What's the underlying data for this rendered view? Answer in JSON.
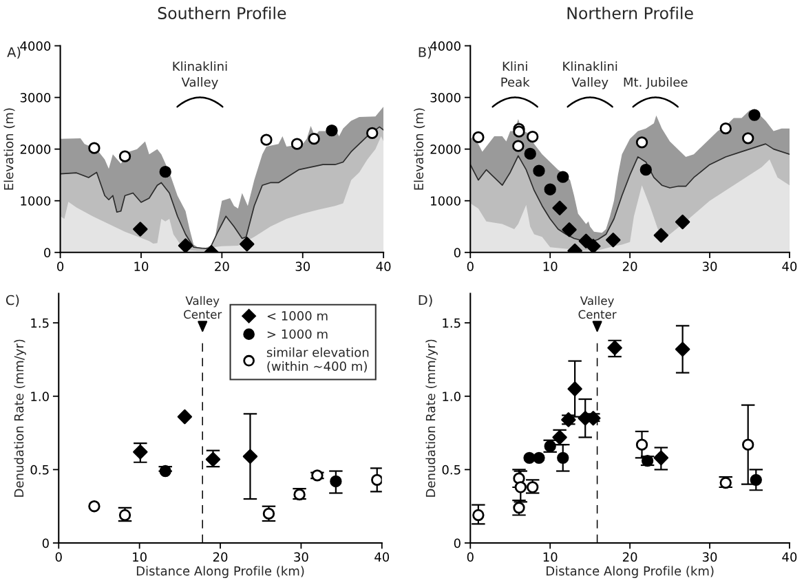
{
  "chart_data": [
    {
      "type": "area",
      "title": "Southern Profile",
      "ylabel": "Elevation (m)",
      "xlim": [
        0,
        40
      ],
      "xticks": [
        0,
        10,
        20,
        30,
        40
      ],
      "ylim": [
        0,
        4000
      ],
      "yticks": [
        0,
        1000,
        2000,
        3000,
        4000
      ],
      "annotations": [
        "A)",
        "Klinaklini\nValley"
      ],
      "series": [
        {
          "type": "area",
          "color": "#9a9a9a",
          "x": [
            0,
            2.5,
            3,
            4.5,
            5.5,
            6,
            6.5,
            7.5,
            8.5,
            9.5,
            10.5,
            11,
            12,
            12.5,
            13.5,
            14.5,
            15.5,
            16,
            16.5,
            17,
            18,
            19,
            19.5,
            20,
            21,
            21.5,
            22,
            22.5,
            23.2,
            24,
            25,
            25.5,
            27,
            27.5,
            28,
            30,
            30.5,
            31,
            31.5,
            32,
            33,
            34,
            34.5,
            35,
            36,
            37,
            39,
            40
          ],
          "values": [
            2200,
            2210,
            2100,
            2000,
            1800,
            1620,
            1900,
            1720,
            1950,
            2000,
            2150,
            1900,
            2000,
            1900,
            1550,
            1100,
            800,
            450,
            150,
            100,
            90,
            150,
            600,
            1000,
            1050,
            900,
            850,
            1150,
            900,
            1400,
            1900,
            2050,
            2100,
            2250,
            2050,
            2100,
            2200,
            2450,
            2250,
            2350,
            2350,
            2400,
            2250,
            2400,
            2550,
            2620,
            2630,
            2820
          ]
        },
        {
          "type": "area",
          "color": "#bdbdbd",
          "line_style": "solid",
          "x": [
            0,
            2,
            3.5,
            4.5,
            5.5,
            6,
            6.5,
            7,
            7.5,
            8,
            9,
            10,
            11,
            12,
            12.5,
            13.5,
            14.5,
            15.5,
            16.5,
            17.5,
            18.5,
            19.5,
            20.5,
            21.5,
            22.5,
            23,
            24,
            25,
            26,
            27,
            28,
            29.5,
            31,
            32.5,
            34,
            35,
            36,
            38,
            39.5,
            40
          ],
          "values": [
            1520,
            1540,
            1450,
            1550,
            1100,
            1020,
            1100,
            780,
            800,
            1100,
            1150,
            970,
            1050,
            1300,
            1350,
            1150,
            700,
            350,
            100,
            80,
            70,
            400,
            700,
            500,
            270,
            300,
            900,
            1300,
            1350,
            1350,
            1450,
            1600,
            1650,
            1700,
            1700,
            1750,
            1950,
            2250,
            2430,
            2370
          ]
        },
        {
          "type": "area",
          "color": "#e4e4e4",
          "x": [
            0,
            0.5,
            1,
            2,
            4,
            6,
            8,
            10,
            11,
            11.5,
            12,
            12.5,
            13,
            13.5,
            14,
            15,
            16,
            17,
            18.5,
            19,
            20,
            22,
            24,
            26,
            28,
            30,
            32,
            34,
            35,
            36,
            37,
            38,
            39,
            39.7,
            40
          ],
          "values": [
            700,
            650,
            980,
            870,
            700,
            550,
            400,
            280,
            220,
            170,
            180,
            650,
            600,
            650,
            350,
            120,
            40,
            30,
            30,
            100,
            120,
            130,
            300,
            500,
            650,
            750,
            830,
            900,
            950,
            1400,
            1550,
            1800,
            2000,
            2250,
            2150
          ]
        },
        {
          "type": "scatter",
          "marker": "diamond",
          "color": "#000000",
          "x": [
            9.9,
            15.5,
            18.7,
            23.1
          ],
          "values": [
            450,
            130,
            0,
            160
          ]
        },
        {
          "type": "scatter",
          "marker": "circle",
          "color": "#000000",
          "x": [
            13,
            33.6
          ],
          "values": [
            1560,
            2360
          ]
        },
        {
          "type": "scatter",
          "marker": "circle",
          "color": "#ffffff",
          "x": [
            4.2,
            8,
            25.5,
            29.3,
            31.4,
            38.6
          ],
          "values": [
            2020,
            1860,
            2180,
            2100,
            2200,
            2310
          ]
        }
      ]
    },
    {
      "type": "area",
      "title": "Northern Profile",
      "ylabel": "Elevation (m)",
      "xlim": [
        0,
        40
      ],
      "xticks": [
        0,
        10,
        20,
        30,
        40
      ],
      "ylim": [
        0,
        4000
      ],
      "yticks": [
        0,
        1000,
        2000,
        3000,
        4000
      ],
      "annotations": [
        "B)",
        "Klini\nPeak",
        "Klinaklini\nValley",
        "Mt. Jubilee"
      ],
      "series": [
        {
          "type": "area",
          "color": "#9a9a9a",
          "x": [
            0,
            0.5,
            1,
            1.5,
            2,
            3,
            4,
            4.5,
            5,
            5.5,
            6,
            6.5,
            7.5,
            8,
            9,
            10,
            11,
            12,
            12.5,
            13,
            13.5,
            14.5,
            14.8,
            15,
            15.5,
            16.5,
            17,
            17.5,
            18,
            18.5,
            19,
            20,
            21,
            22,
            23,
            23.3,
            24,
            25,
            26,
            27,
            28,
            29,
            30,
            31,
            32,
            33,
            34,
            35,
            36,
            37,
            38,
            39,
            40
          ],
          "values": [
            2200,
            2250,
            2100,
            1950,
            2050,
            2250,
            2250,
            2150,
            2350,
            2350,
            2580,
            2350,
            2300,
            2100,
            1900,
            1750,
            1600,
            1500,
            1400,
            1100,
            750,
            550,
            600,
            500,
            400,
            380,
            450,
            700,
            1000,
            1500,
            1900,
            2200,
            2350,
            2400,
            2500,
            2650,
            2400,
            2150,
            2000,
            1850,
            1900,
            2050,
            2200,
            2350,
            2450,
            2600,
            2600,
            2750,
            2700,
            2550,
            2350,
            2400,
            2400
          ]
        },
        {
          "type": "area",
          "color": "#bdbdbd",
          "line_style": "solid",
          "x": [
            0,
            1,
            2,
            3,
            4,
            5,
            6,
            7,
            8,
            9,
            10,
            11,
            12,
            13,
            14,
            15,
            16,
            17,
            18,
            19,
            20,
            21,
            22,
            23,
            24,
            25,
            26,
            27,
            28,
            30,
            32,
            34,
            35,
            37,
            38,
            40
          ],
          "values": [
            1700,
            1400,
            1600,
            1450,
            1300,
            1550,
            1870,
            1600,
            1200,
            900,
            650,
            450,
            350,
            270,
            230,
            200,
            250,
            350,
            650,
            1100,
            1500,
            1850,
            1750,
            1450,
            1300,
            1250,
            1280,
            1280,
            1450,
            1700,
            1850,
            1950,
            2000,
            2100,
            2000,
            1900
          ]
        },
        {
          "type": "area",
          "color": "#e4e4e4",
          "x": [
            0,
            1,
            2,
            4,
            5.5,
            6,
            7,
            7.5,
            8,
            9,
            10,
            12,
            14,
            16,
            17,
            18,
            19,
            20,
            20.5,
            21.5,
            22.5,
            23.5,
            24.5,
            25,
            27,
            30,
            33,
            35,
            36.5,
            37.5,
            38.5,
            40
          ],
          "values": [
            950,
            850,
            600,
            550,
            450,
            550,
            920,
            500,
            350,
            300,
            100,
            70,
            40,
            40,
            80,
            120,
            150,
            200,
            700,
            1300,
            900,
            450,
            300,
            350,
            600,
            1000,
            1300,
            1500,
            1650,
            1800,
            1450,
            1300
          ]
        },
        {
          "type": "scatter",
          "marker": "diamond",
          "color": "#000000",
          "x": [
            11.2,
            12.4,
            13.1,
            14.5,
            15.4,
            17.9,
            23.9,
            26.6
          ],
          "values": [
            860,
            440,
            30,
            220,
            120,
            240,
            330,
            590
          ]
        },
        {
          "type": "scatter",
          "marker": "circle",
          "color": "#000000",
          "x": [
            7.5,
            8.6,
            10,
            11.6,
            22,
            35.6
          ],
          "values": [
            1910,
            1580,
            1220,
            1460,
            1600,
            2660
          ]
        },
        {
          "type": "scatter",
          "marker": "circle",
          "color": "#ffffff",
          "x": [
            1,
            6.1,
            6.1,
            6.0,
            7.8,
            21.5,
            32,
            34.8
          ],
          "values": [
            2230,
            2390,
            2340,
            2060,
            2240,
            2130,
            2400,
            2210
          ]
        }
      ]
    },
    {
      "type": "scatter",
      "xlabel": "Distance Along Profile (km)",
      "ylabel": "Denudation Rate (mm/yr)",
      "xlim": [
        0,
        40
      ],
      "xticks": [
        0,
        10,
        20,
        30,
        40
      ],
      "ylim": [
        0,
        1.7
      ],
      "yticks": [
        0,
        {
          "value": 0.5,
          "label": "0.5"
        },
        {
          "value": 1.0,
          "label": "1.0"
        },
        {
          "value": 1.5,
          "label": "1.5"
        }
      ],
      "annotations": [
        "C)"
      ],
      "legend": "top right",
      "ref_lines": [
        {
          "axis": "x",
          "value": 17.8,
          "label": "Valley\nCenter",
          "line_style": "dashed",
          "color": "#000000"
        }
      ],
      "series": [
        {
          "name": "< 1000 m",
          "marker": "diamond",
          "color": "#000000",
          "x": [
            10.1,
            15.6,
            19.1,
            23.7
          ],
          "values": [
            0.62,
            0.86,
            0.57,
            0.59
          ],
          "errors": [
            [
              0.55,
              0.68
            ],
            null,
            [
              0.52,
              0.63
            ],
            [
              0.3,
              0.88
            ]
          ]
        },
        {
          "name": "> 1000 m",
          "marker": "circle",
          "color": "#000000",
          "x": [
            13.2,
            34.3
          ],
          "values": [
            0.49,
            0.42
          ],
          "errors": [
            [
              0.49,
              0.52
            ],
            [
              0.34,
              0.49
            ]
          ]
        },
        {
          "name": "similar elevation\n(within ~400 m)",
          "marker": "circle",
          "color": "#ffffff",
          "x": [
            4.4,
            8.2,
            26,
            29.8,
            32,
            39.4
          ],
          "values": [
            0.25,
            0.19,
            0.2,
            0.33,
            0.46,
            0.43
          ],
          "errors": [
            null,
            [
              0.15,
              0.24
            ],
            [
              0.15,
              0.25
            ],
            [
              0.3,
              0.37
            ],
            [
              0.44,
              0.48
            ],
            [
              0.35,
              0.51
            ]
          ]
        }
      ]
    },
    {
      "type": "scatter",
      "xlabel": "Distance Along Profile (km)",
      "ylabel": "Denudation Rate (mm/yr)",
      "xlim": [
        0,
        40
      ],
      "xticks": [
        0,
        10,
        20,
        30,
        40
      ],
      "ylim": [
        0,
        1.7
      ],
      "yticks": [
        0,
        {
          "value": 0.5,
          "label": "0.5"
        },
        {
          "value": 1.0,
          "label": "1.0"
        },
        {
          "value": 1.5,
          "label": "1.5"
        }
      ],
      "annotations": [
        "D)"
      ],
      "ref_lines": [
        {
          "axis": "x",
          "value": 15.9,
          "label": "Valley\nCenter",
          "line_style": "dashed",
          "color": "#000000"
        }
      ],
      "series": [
        {
          "marker": "diamond",
          "color": "#000000",
          "x": [
            11.2,
            12.3,
            13.1,
            14.4,
            15.4,
            18.1,
            23.9,
            26.6
          ],
          "values": [
            0.72,
            0.84,
            1.05,
            0.85,
            0.85,
            1.33,
            0.58,
            1.32
          ],
          "errors": [
            [
              0.67,
              0.77
            ],
            [
              0.81,
              0.87
            ],
            [
              0.86,
              1.24
            ],
            [
              0.72,
              0.98
            ],
            [
              0.83,
              0.88
            ],
            [
              1.27,
              1.38
            ],
            [
              0.5,
              0.65
            ],
            [
              1.16,
              1.48
            ]
          ]
        },
        {
          "marker": "circle",
          "color": "#000000",
          "x": [
            7.4,
            8.6,
            10,
            11.6,
            22.2,
            35.8
          ],
          "values": [
            0.58,
            0.58,
            0.66,
            0.58,
            0.56,
            0.43
          ],
          "errors": [
            null,
            null,
            [
              0.62,
              0.7
            ],
            [
              0.49,
              0.67
            ],
            [
              0.53,
              0.59
            ],
            [
              0.36,
              0.5
            ]
          ]
        },
        {
          "marker": "circle",
          "color": "#ffffff",
          "x": [
            1,
            6.1,
            6.3,
            6.1,
            7.8,
            21.5,
            32,
            34.8
          ],
          "values": [
            0.19,
            0.44,
            0.38,
            0.24,
            0.38,
            0.67,
            0.41,
            0.67
          ],
          "errors": [
            [
              0.13,
              0.26
            ],
            [
              0.38,
              0.5
            ],
            [
              0.28,
              0.49
            ],
            [
              0.19,
              0.29
            ],
            [
              0.34,
              0.43
            ],
            [
              0.58,
              0.76
            ],
            [
              0.38,
              0.45
            ],
            [
              0.4,
              0.94
            ]
          ]
        }
      ]
    }
  ]
}
